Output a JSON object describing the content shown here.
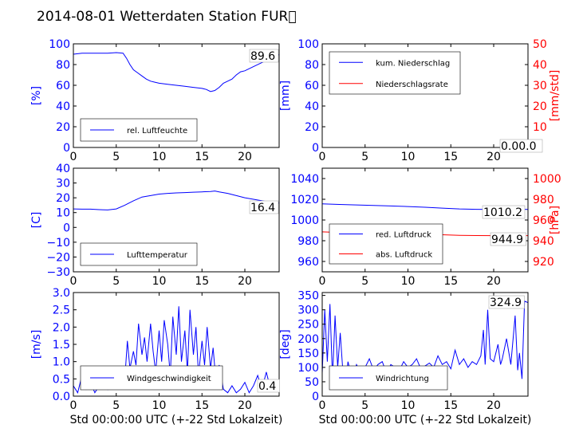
{
  "figure_title": "2014-08-01 Wetterdaten Station FUR\u0000",
  "colors": {
    "primary": "#0000ff",
    "secondary": "#ff0000",
    "frame": "#000000",
    "grid": "#000000"
  },
  "chart_data": [
    {
      "id": "humidity",
      "type": "line",
      "xlim": [
        0,
        24
      ],
      "xticks": [
        "0",
        "5",
        "10",
        "15",
        "20"
      ],
      "ylim": [
        0,
        100
      ],
      "yticks": [
        "0",
        "20",
        "40",
        "60",
        "80",
        "100"
      ],
      "ylabel": "[%]",
      "last_value_label": "89.6",
      "legend": {
        "placement": "lower-left",
        "entries": [
          "rel. Luftfeuchte"
        ]
      },
      "series": [
        {
          "name": "rel. Luftfeuchte",
          "color": "#0000ff",
          "x": [
            0,
            1,
            2,
            3,
            4,
            5,
            5.8,
            6.2,
            6.6,
            7,
            7.5,
            8,
            8.5,
            9,
            9.5,
            10,
            11,
            12,
            13,
            14,
            15,
            15.5,
            16,
            16.5,
            17,
            17.5,
            18,
            18.5,
            19,
            19.5,
            20,
            21,
            22,
            23,
            24
          ],
          "y": [
            90,
            91,
            91,
            91,
            91,
            91.5,
            91,
            86,
            80,
            75,
            72,
            69,
            66,
            64,
            63,
            62,
            61,
            60,
            59,
            58,
            57,
            56,
            54,
            55,
            58,
            62,
            64,
            66,
            70,
            73,
            74,
            78,
            82,
            86,
            89.6
          ]
        }
      ]
    },
    {
      "id": "precipitation",
      "type": "line",
      "xlim": [
        0,
        24
      ],
      "xticks": [
        "0",
        "5",
        "10",
        "15",
        "20"
      ],
      "ylim": [
        0,
        100
      ],
      "yticks": [
        "0",
        "20",
        "40",
        "60",
        "80",
        "100"
      ],
      "ylabel": "[mm]",
      "ylim_right": [
        0,
        50
      ],
      "yticks_right": [
        "0",
        "10",
        "20",
        "30",
        "40",
        "50"
      ],
      "ylabel_right": "[mm/std]",
      "last_value_label": "0.00.0",
      "legend": {
        "placement": "upper-left",
        "entries": [
          "kum. Niederschlag",
          "Niederschlagsrate"
        ]
      },
      "series": [
        {
          "name": "kum. Niederschlag",
          "color": "#0000ff",
          "axis": "left",
          "x": [
            0,
            24
          ],
          "y": [
            0,
            0
          ]
        },
        {
          "name": "Niederschlagsrate",
          "color": "#ff0000",
          "axis": "right",
          "x": [
            0,
            24
          ],
          "y": [
            0,
            0
          ]
        }
      ]
    },
    {
      "id": "temperature",
      "type": "line",
      "xlim": [
        0,
        24
      ],
      "xticks": [
        "0",
        "5",
        "10",
        "15",
        "20"
      ],
      "ylim": [
        -30,
        40
      ],
      "yticks": [
        "−30",
        "−20",
        "−10",
        "0",
        "10",
        "20",
        "30",
        "40"
      ],
      "ylabel": "[C]",
      "last_value_label": "16.4",
      "legend": {
        "placement": "lower-left",
        "entries": [
          "Lufttemperatur"
        ]
      },
      "series": [
        {
          "name": "Lufttemperatur",
          "color": "#0000ff",
          "x": [
            0,
            1,
            2,
            3,
            4,
            5,
            6,
            7,
            8,
            9,
            10,
            11,
            12,
            13,
            14,
            15,
            16,
            16.5,
            17,
            18,
            19,
            20,
            21,
            22,
            23,
            24
          ],
          "y": [
            12.5,
            12.3,
            12.3,
            12.0,
            11.8,
            12.5,
            15,
            18,
            20.5,
            21.5,
            22.5,
            23,
            23.3,
            23.5,
            23.8,
            24,
            24.2,
            24.6,
            24,
            23,
            21.5,
            20,
            19,
            18,
            17,
            16.4
          ]
        }
      ]
    },
    {
      "id": "pressure",
      "type": "line",
      "xlim": [
        0,
        24
      ],
      "xticks": [
        "0",
        "5",
        "10",
        "15",
        "20"
      ],
      "ylim": [
        950,
        1050
      ],
      "yticks": [
        "960",
        "980",
        "1000",
        "1020",
        "1040"
      ],
      "ylim_right": [
        910,
        1010
      ],
      "yticks_right": [
        "920",
        "940",
        "960",
        "980",
        "1000"
      ],
      "ylabel_right": "[hPa]",
      "last_value_labels": [
        "1010.2",
        "944.9"
      ],
      "legend": {
        "placement": "lower-left",
        "entries": [
          "red. Luftdruck",
          "abs. Luftdruck"
        ]
      },
      "series": [
        {
          "name": "red. Luftdruck",
          "color": "#0000ff",
          "axis": "left",
          "x": [
            0,
            2,
            4,
            6,
            8,
            10,
            12,
            14,
            16,
            18,
            20,
            22,
            24
          ],
          "y": [
            1015.5,
            1015,
            1014.5,
            1014,
            1013.5,
            1013,
            1012.3,
            1011.5,
            1010.7,
            1010.3,
            1010.2,
            1010.5,
            1010.2
          ]
        },
        {
          "name": "abs. Luftdruck",
          "color": "#ff0000",
          "axis": "right",
          "x": [
            0,
            2,
            4,
            6,
            8,
            10,
            12,
            14,
            16,
            18,
            20,
            22,
            24
          ],
          "y": [
            948.5,
            948,
            947.8,
            947.5,
            947.2,
            946.8,
            946.3,
            945.8,
            945.2,
            945,
            944.9,
            945.1,
            944.9
          ]
        }
      ]
    },
    {
      "id": "wind_speed",
      "type": "line",
      "xlim": [
        0,
        24
      ],
      "xticks": [
        "0",
        "5",
        "10",
        "15",
        "20"
      ],
      "xlabel": "Std 00:00:00 UTC (+-22 Std Lokalzeit)",
      "ylim": [
        0,
        3
      ],
      "yticks": [
        "0.0",
        "0.5",
        "1.0",
        "1.5",
        "2.0",
        "2.5",
        "3.0"
      ],
      "ylabel": "[m/s]",
      "last_value_label": "0.4",
      "legend": {
        "placement": "lower-left",
        "entries": [
          "Windgeschwindigkeit"
        ]
      },
      "series": [
        {
          "name": "Windgeschwindigkeit",
          "color": "#0000ff",
          "x": [
            0,
            0.5,
            1,
            1.5,
            2,
            2.5,
            3,
            3.5,
            4,
            4.5,
            5,
            5.5,
            6,
            6.3,
            6.6,
            7,
            7.3,
            7.6,
            8,
            8.3,
            8.6,
            9,
            9.3,
            9.6,
            10,
            10.3,
            10.6,
            11,
            11.3,
            11.6,
            12,
            12.3,
            12.6,
            13,
            13.3,
            13.6,
            14,
            14.3,
            14.6,
            15,
            15.3,
            15.6,
            16,
            16.3,
            16.6,
            17,
            17.5,
            18,
            18.5,
            19,
            19.5,
            20,
            20.5,
            21,
            21.5,
            22,
            22.5,
            23,
            23.5,
            24
          ],
          "y": [
            0.3,
            0.1,
            0.6,
            0.2,
            0.4,
            0.1,
            0.3,
            0.5,
            0.2,
            0.6,
            0.3,
            0.8,
            0.5,
            1.6,
            0.8,
            1.3,
            0.9,
            2.1,
            1.2,
            1.7,
            1.0,
            2.1,
            1.3,
            0.7,
            1.9,
            1.0,
            2.2,
            1.5,
            0.6,
            2.3,
            1.2,
            2.6,
            1.0,
            1.9,
            0.7,
            2.5,
            1.2,
            2.0,
            0.6,
            1.6,
            0.9,
            2.0,
            0.8,
            1.4,
            0.5,
            0.9,
            0.2,
            0.1,
            0.3,
            0.1,
            0.2,
            0.4,
            0.1,
            0.3,
            0.6,
            0.2,
            0.7,
            0.2,
            0.4,
            0.4
          ]
        }
      ]
    },
    {
      "id": "wind_direction",
      "type": "line",
      "xlim": [
        0,
        24
      ],
      "xticks": [
        "0",
        "5",
        "10",
        "15",
        "20"
      ],
      "xlabel": "Std 00:00:00 UTC (+-22 Std Lokalzeit)",
      "ylim": [
        0,
        360
      ],
      "yticks": [
        "0",
        "50",
        "100",
        "150",
        "200",
        "250",
        "300",
        "350"
      ],
      "ylabel": "[deg]",
      "last_value_label": "324.9",
      "legend": {
        "placement": "lower-left",
        "entries": [
          "Windrichtung"
        ]
      },
      "series": [
        {
          "name": "Windrichtung",
          "color": "#0000ff",
          "x": [
            0,
            0.3,
            0.6,
            0.9,
            1.2,
            1.5,
            1.8,
            2.1,
            2.4,
            2.7,
            3,
            3.5,
            4,
            4.5,
            5,
            5.5,
            6,
            6.5,
            7,
            7.5,
            8,
            8.5,
            9,
            9.5,
            10,
            10.5,
            11,
            11.5,
            12,
            12.5,
            13,
            13.5,
            14,
            14.5,
            15,
            15.5,
            16,
            16.5,
            17,
            17.5,
            18,
            18.5,
            18.8,
            19,
            19.3,
            19.6,
            20,
            20.5,
            20.8,
            21,
            21.5,
            22,
            22.5,
            22.8,
            23,
            23.3,
            23.6,
            24
          ],
          "y": [
            80,
            300,
            120,
            320,
            60,
            280,
            100,
            220,
            90,
            40,
            120,
            60,
            110,
            80,
            100,
            130,
            90,
            110,
            120,
            80,
            110,
            100,
            90,
            120,
            100,
            110,
            130,
            95,
            105,
            115,
            100,
            140,
            110,
            120,
            95,
            160,
            110,
            130,
            100,
            120,
            110,
            140,
            230,
            110,
            300,
            130,
            120,
            180,
            110,
            130,
            200,
            110,
            280,
            90,
            150,
            60,
            330,
            324.9
          ]
        }
      ]
    }
  ]
}
